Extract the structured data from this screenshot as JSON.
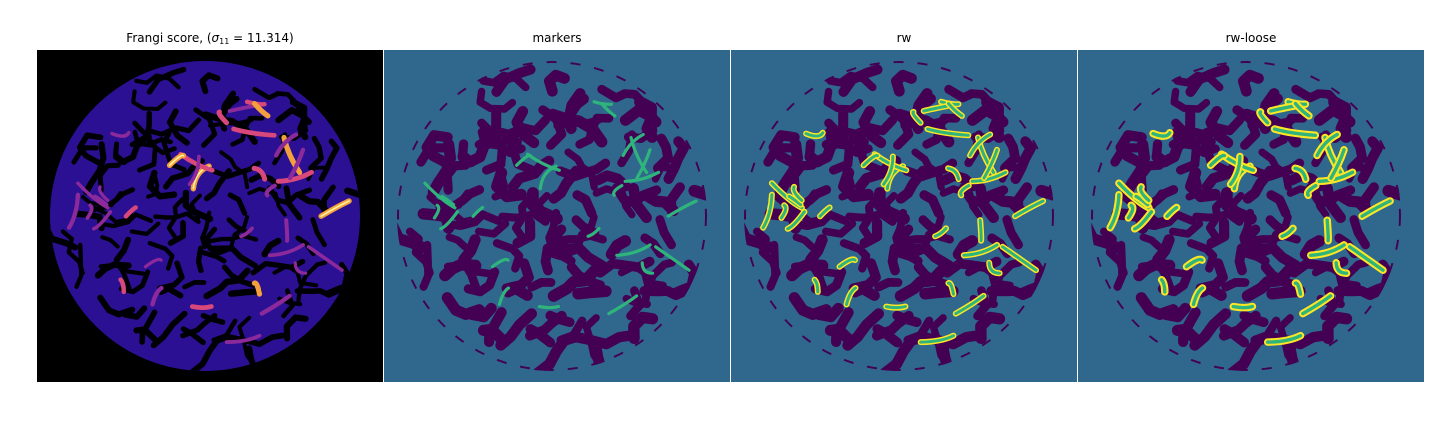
{
  "figure": {
    "panels": [
      {
        "id": "frangi",
        "title_prefix": "Frangi score, (",
        "title_sigma": "σ",
        "title_sub": "11",
        "title_suffix": " = 11.314)",
        "kind": "score",
        "background": "#000000",
        "colormap": [
          "#000004",
          "#2c1094",
          "#4c1ec6",
          "#8c2a9c",
          "#d9487a",
          "#f4a03c",
          "#fcf2a0"
        ]
      },
      {
        "id": "markers",
        "title": "markers",
        "kind": "labels",
        "background": "#30678d",
        "colors": {
          "background": "#30678d",
          "dark": "#440154",
          "vessel": "#2fb47c"
        }
      },
      {
        "id": "rw",
        "title": "rw",
        "kind": "labels-rw",
        "background": "#30678d",
        "colors": {
          "background": "#30678d",
          "dark": "#440154",
          "vessel": "#2fb47c",
          "edge": "#fde725"
        }
      },
      {
        "id": "rw-loose",
        "title": "rw-loose",
        "kind": "labels-rw-loose",
        "background": "#30678d",
        "colors": {
          "background": "#30678d",
          "dark": "#440154",
          "vessel": "#2fb47c",
          "edge": "#fde725"
        }
      }
    ]
  }
}
